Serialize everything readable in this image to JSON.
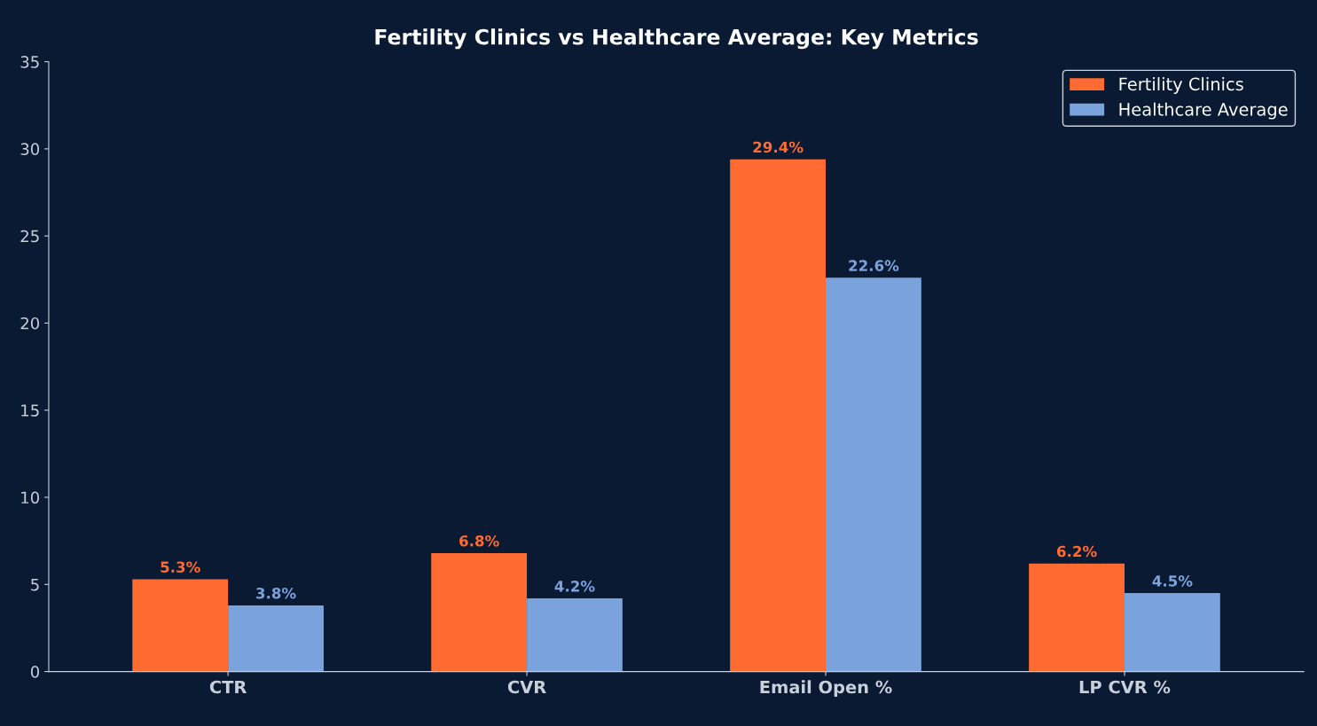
{
  "chart_data": {
    "type": "bar",
    "title": "Fertility Clinics vs Healthcare Average: Key Metrics",
    "categories": [
      "CTR",
      "CVR",
      "Email Open %",
      "LP CVR %"
    ],
    "series": [
      {
        "name": "Fertility Clinics",
        "color": "#ff6b30",
        "values": [
          5.3,
          6.8,
          29.4,
          6.2
        ],
        "value_labels": [
          "5.3%",
          "6.8%",
          "29.4%",
          "6.2%"
        ]
      },
      {
        "name": "Healthcare Average",
        "color": "#7aa2dc",
        "values": [
          3.8,
          4.2,
          22.6,
          4.5
        ],
        "value_labels": [
          "3.8%",
          "4.2%",
          "22.6%",
          "4.5%"
        ]
      }
    ],
    "ylim": [
      0,
      35
    ],
    "yticks": [
      0,
      5,
      10,
      15,
      20,
      25,
      30,
      35
    ],
    "grid": false,
    "legend": "top right"
  }
}
